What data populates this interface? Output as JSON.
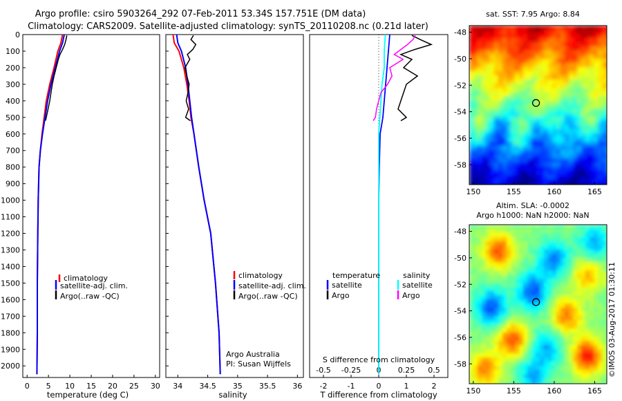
{
  "header": {
    "title_line1": "Argo profile: csiro 5903264_292 07-Feb-2011 53.34S 157.751E (DM data)",
    "title_line2": "Climatology: CARS2009. Satellite-adjusted climatology: synTS_20110208.nc (0.21d later)"
  },
  "colors": {
    "climatology": "#ff0000",
    "satellite": "#0000ff",
    "argo": "#000000",
    "argo_salinity_diff": "#ff00ff",
    "satellite_salinity_diff": "#00ffff"
  },
  "chart_data": [
    {
      "type": "line",
      "id": "temperature",
      "xlabel": "temperature (deg C)",
      "ylabel": "",
      "xlim": [
        -1,
        31
      ],
      "ylim": [
        2070,
        0
      ],
      "xticks": [
        "0",
        "5",
        "10",
        "15",
        "20",
        "25",
        "30"
      ],
      "yticks": [
        "0",
        "100",
        "200",
        "300",
        "400",
        "500",
        "600",
        "700",
        "800",
        "900",
        "1000",
        "1100",
        "1200",
        "1300",
        "1400",
        "1500",
        "1600",
        "1700",
        "1800",
        "1900",
        "2000"
      ],
      "legend": [
        "climatology",
        "satellite-adj. clim.",
        "Argo(..raw -QC)"
      ],
      "series": [
        {
          "name": "climatology",
          "depth": [
            0,
            50,
            100,
            200,
            300,
            400,
            500,
            600,
            700,
            800,
            1000,
            1200,
            1500,
            1800,
            2050
          ],
          "values": [
            8.3,
            7.9,
            7.2,
            6.3,
            5.3,
            4.5,
            4.0,
            3.5,
            3.1,
            2.8,
            2.6,
            2.5,
            2.4,
            2.4,
            2.3
          ]
        },
        {
          "name": "satellite-adj. clim.",
          "depth": [
            0,
            50,
            100,
            200,
            300,
            400,
            500,
            600,
            700,
            800,
            1000,
            1200,
            1500,
            1800,
            2050
          ],
          "values": [
            8.7,
            8.3,
            7.6,
            6.6,
            5.6,
            4.8,
            4.2,
            3.6,
            3.1,
            2.8,
            2.6,
            2.5,
            2.4,
            2.4,
            2.3
          ]
        },
        {
          "name": "Argo(..raw -QC)",
          "depth": [
            5,
            30,
            60,
            90,
            120,
            150,
            200,
            250,
            300,
            350,
            400,
            450,
            500,
            520
          ],
          "values": [
            9.3,
            9.1,
            8.8,
            8.3,
            7.7,
            7.3,
            6.8,
            6.3,
            5.9,
            5.6,
            5.3,
            4.9,
            4.5,
            4.3
          ]
        }
      ]
    },
    {
      "type": "line",
      "id": "salinity",
      "xlabel": "salinity",
      "ylabel": "",
      "xlim": [
        33.8,
        36.1
      ],
      "ylim": [
        2070,
        0
      ],
      "xticks": [
        "34",
        "34.5",
        "35",
        "35.5",
        "36"
      ],
      "legend": [
        "climatology",
        "satellite-adj. clim.",
        "Argo(..raw -QC)"
      ],
      "annotation": [
        "Argo Australia",
        "PI: Susan Wijffels"
      ],
      "series": [
        {
          "name": "climatology",
          "depth": [
            0,
            50,
            100,
            200,
            300,
            400,
            500,
            600,
            800,
            1000,
            1200,
            1500,
            1800,
            2050
          ],
          "values": [
            33.92,
            33.94,
            34.02,
            34.1,
            34.15,
            34.19,
            34.22,
            34.27,
            34.35,
            34.44,
            34.55,
            34.63,
            34.69,
            34.71
          ]
        },
        {
          "name": "satellite-adj. clim.",
          "depth": [
            0,
            50,
            100,
            200,
            300,
            400,
            500,
            600,
            800,
            1000,
            1200,
            1500,
            1800,
            2050
          ],
          "values": [
            33.98,
            34.0,
            34.06,
            34.13,
            34.17,
            34.2,
            34.23,
            34.27,
            34.35,
            34.44,
            34.55,
            34.63,
            34.69,
            34.71
          ]
        },
        {
          "name": "Argo(..raw -QC)",
          "depth": [
            5,
            30,
            60,
            90,
            120,
            150,
            200,
            250,
            300,
            350,
            400,
            450,
            500,
            520
          ],
          "values": [
            34.26,
            34.22,
            34.3,
            34.25,
            34.16,
            34.2,
            34.12,
            34.15,
            34.19,
            34.17,
            34.14,
            34.18,
            34.13,
            34.21
          ]
        }
      ]
    },
    {
      "type": "line",
      "id": "difference",
      "xlabel": "T difference from climatology",
      "xlabel_top": "S difference from climatology",
      "xlim": [
        -2.5,
        2.5
      ],
      "ylim": [
        2070,
        0
      ],
      "xticks_bottom": [
        "-2",
        "-1",
        "0",
        "1",
        "2"
      ],
      "xticks_top": [
        "-0.5",
        "-0.25",
        "0",
        "0.25",
        "0.5"
      ],
      "legend_headers": [
        "temperature",
        "salinity"
      ],
      "legend": [
        "satellite",
        "Argo",
        "satellite",
        "Argo"
      ],
      "series": [
        {
          "name": "temperature satellite",
          "depth": [
            0,
            100,
            200,
            300,
            400,
            500,
            600,
            800,
            1000,
            1500,
            2050
          ],
          "values": [
            0.4,
            0.35,
            0.3,
            0.25,
            0.2,
            0.15,
            0.05,
            0.02,
            0.0,
            0.0,
            0.0
          ]
        },
        {
          "name": "temperature Argo",
          "depth": [
            5,
            30,
            60,
            90,
            120,
            150,
            200,
            250,
            300,
            350,
            400,
            450,
            500,
            520
          ],
          "values": [
            1.2,
            1.5,
            1.9,
            1.3,
            0.8,
            1.2,
            0.9,
            1.4,
            1.0,
            0.9,
            0.8,
            0.7,
            1.0,
            0.8
          ]
        },
        {
          "name": "salinity satellite",
          "depth": [
            0,
            100,
            200,
            300,
            400,
            500,
            600,
            800,
            1000,
            1500,
            2050
          ],
          "values": [
            0.06,
            0.05,
            0.05,
            0.03,
            0.02,
            0.01,
            0.0,
            0.0,
            0.0,
            0.0,
            0.0
          ]
        },
        {
          "name": "salinity Argo",
          "depth": [
            5,
            30,
            60,
            90,
            120,
            150,
            200,
            250,
            300,
            350,
            400,
            450,
            500,
            520
          ],
          "values": [
            0.33,
            0.31,
            0.26,
            0.2,
            0.14,
            0.22,
            0.1,
            0.12,
            0.08,
            0.02,
            0.0,
            -0.02,
            -0.03,
            -0.05
          ]
        }
      ]
    },
    {
      "type": "heatmap",
      "id": "sst-map",
      "title": "sat. SST: 7.95 Argo: 8.84",
      "xlim": [
        149.5,
        166.5
      ],
      "ylim": [
        -59.5,
        -47.5
      ],
      "xticks": [
        "150",
        "155",
        "160",
        "165"
      ],
      "yticks": [
        "-48",
        "-50",
        "-52",
        "-54",
        "-56",
        "-58"
      ],
      "profile_location": {
        "lon": 157.751,
        "lat": -53.34
      }
    },
    {
      "type": "heatmap",
      "id": "sla-map",
      "title_line1": "Altim. SLA: -0.0002",
      "title_line2": "Argo h1000: NaN h2000: NaN",
      "xlim": [
        149.5,
        166.5
      ],
      "ylim": [
        -59.5,
        -47.5
      ],
      "xticks": [
        "150",
        "155",
        "160",
        "165"
      ],
      "yticks": [
        "-48",
        "-50",
        "-52",
        "-54",
        "-56",
        "-58"
      ],
      "profile_location": {
        "lon": 157.751,
        "lat": -53.34
      }
    }
  ],
  "footer": {
    "credit": "©IMOS 03-Aug-2017 01:30:11"
  }
}
